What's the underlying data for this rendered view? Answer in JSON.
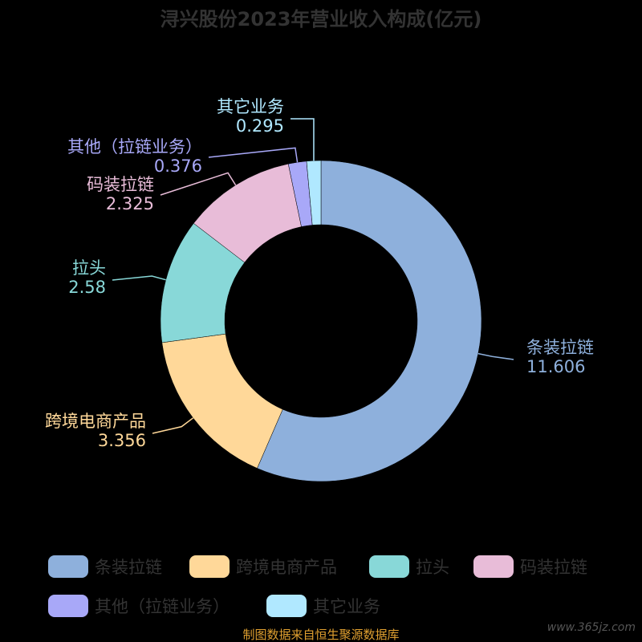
{
  "chart_data": {
    "type": "pie",
    "title": "浔兴股份2023年营业收入构成(亿元)",
    "series": [
      {
        "name": "条装拉链",
        "value": 11.606,
        "value_label": "11.606",
        "color": "#8eb0dc"
      },
      {
        "name": "跨境电商产品",
        "value": 3.356,
        "value_label": "3.356",
        "color": "#ffd899"
      },
      {
        "name": "拉头",
        "value": 2.58,
        "value_label": "2.58",
        "color": "#88d8d8"
      },
      {
        "name": "码装拉链",
        "value": 2.325,
        "value_label": "2.325",
        "color": "#e8bcd8"
      },
      {
        "name": "其他（拉链业务）",
        "value": 0.376,
        "value_label": "0.376",
        "color": "#a8a8f8"
      },
      {
        "name": "其它业务",
        "value": 0.295,
        "value_label": "0.295",
        "color": "#b0e8ff"
      }
    ],
    "legend_position": "bottom",
    "donut": true
  },
  "source": "制图数据来自恒生聚源数据库",
  "watermark": "www.365jz.com"
}
